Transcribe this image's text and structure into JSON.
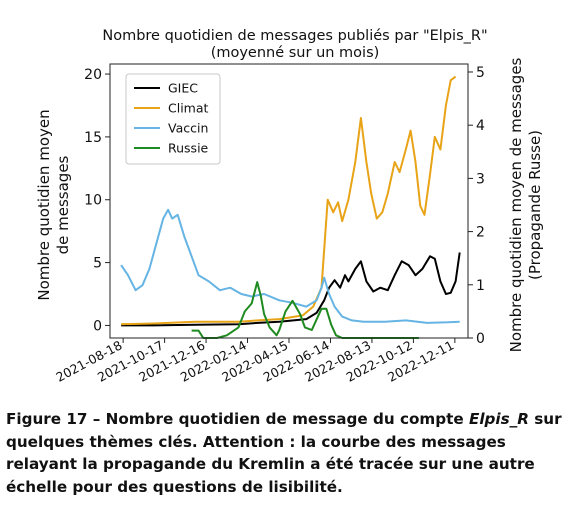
{
  "chart_data": {
    "type": "line",
    "title": "Nombre quotidien de messages publiés par \"Elpis_R\"",
    "subtitle": "(moyenné sur un mois)",
    "ylabel_left": [
      "Nombre quotidien moyen",
      "de messages"
    ],
    "ylabel_right": [
      "Nombre quotidien moyen de messages",
      "(Propagande Russe)"
    ],
    "xlim": [
      "2021-07-30",
      "2022-12-30"
    ],
    "ylim_left": [
      -1,
      20.8
    ],
    "ylim_right": [
      0,
      5.15
    ],
    "yticks_left": [
      0,
      5,
      10,
      15,
      20
    ],
    "yticks_right": [
      0,
      1,
      2,
      3,
      4,
      5
    ],
    "x_ticks": [
      "2021-08-18",
      "2021-10-17",
      "2021-12-16",
      "2022-02-14",
      "2022-04-15",
      "2022-06-14",
      "2022-08-13",
      "2022-10-12",
      "2022-12-11"
    ],
    "legend_placement": "upper-left",
    "series": [
      {
        "name": "GIEC",
        "color": "#000000",
        "axis": "left",
        "points": [
          [
            "2021-08-15",
            0.0
          ],
          [
            "2021-10-01",
            0.0
          ],
          [
            "2021-12-01",
            0.05
          ],
          [
            "2022-02-01",
            0.1
          ],
          [
            "2022-03-01",
            0.2
          ],
          [
            "2022-04-01",
            0.3
          ],
          [
            "2022-05-10",
            0.5
          ],
          [
            "2022-05-25",
            1.0
          ],
          [
            "2022-06-05",
            2.0
          ],
          [
            "2022-06-12",
            3.0
          ],
          [
            "2022-06-20",
            3.6
          ],
          [
            "2022-06-28",
            3.0
          ],
          [
            "2022-07-05",
            4.0
          ],
          [
            "2022-07-10",
            3.5
          ],
          [
            "2022-07-20",
            4.5
          ],
          [
            "2022-07-28",
            5.1
          ],
          [
            "2022-08-05",
            3.5
          ],
          [
            "2022-08-15",
            2.7
          ],
          [
            "2022-08-25",
            3.0
          ],
          [
            "2022-09-05",
            2.8
          ],
          [
            "2022-09-15",
            4.0
          ],
          [
            "2022-09-25",
            5.1
          ],
          [
            "2022-10-05",
            4.8
          ],
          [
            "2022-10-15",
            4.0
          ],
          [
            "2022-10-25",
            4.5
          ],
          [
            "2022-11-05",
            5.5
          ],
          [
            "2022-11-12",
            5.3
          ],
          [
            "2022-11-20",
            3.5
          ],
          [
            "2022-11-28",
            2.5
          ],
          [
            "2022-12-05",
            2.6
          ],
          [
            "2022-12-12",
            3.5
          ],
          [
            "2022-12-18",
            5.8
          ]
        ]
      },
      {
        "name": "Climat",
        "color": "#e8a317",
        "axis": "left",
        "points": [
          [
            "2021-08-15",
            0.1
          ],
          [
            "2021-10-01",
            0.15
          ],
          [
            "2021-12-01",
            0.3
          ],
          [
            "2022-02-01",
            0.3
          ],
          [
            "2022-03-01",
            0.4
          ],
          [
            "2022-04-01",
            0.5
          ],
          [
            "2022-05-05",
            0.8
          ],
          [
            "2022-05-20",
            1.5
          ],
          [
            "2022-06-01",
            3.0
          ],
          [
            "2022-06-10",
            10.0
          ],
          [
            "2022-06-18",
            9.0
          ],
          [
            "2022-06-25",
            9.8
          ],
          [
            "2022-07-01",
            8.3
          ],
          [
            "2022-07-10",
            10.0
          ],
          [
            "2022-07-20",
            13.0
          ],
          [
            "2022-07-28",
            16.5
          ],
          [
            "2022-08-05",
            13.0
          ],
          [
            "2022-08-12",
            10.5
          ],
          [
            "2022-08-20",
            8.5
          ],
          [
            "2022-08-28",
            9.0
          ],
          [
            "2022-09-05",
            10.5
          ],
          [
            "2022-09-15",
            13.0
          ],
          [
            "2022-09-22",
            12.2
          ],
          [
            "2022-10-01",
            14.0
          ],
          [
            "2022-10-08",
            15.5
          ],
          [
            "2022-10-15",
            13.0
          ],
          [
            "2022-10-22",
            9.5
          ],
          [
            "2022-10-28",
            8.8
          ],
          [
            "2022-11-05",
            12.0
          ],
          [
            "2022-11-12",
            15.0
          ],
          [
            "2022-11-20",
            14.0
          ],
          [
            "2022-11-28",
            17.5
          ],
          [
            "2022-12-05",
            19.5
          ],
          [
            "2022-12-12",
            19.8
          ]
        ]
      },
      {
        "name": "Vaccin",
        "color": "#65b4e3",
        "axis": "left",
        "points": [
          [
            "2021-08-15",
            4.8
          ],
          [
            "2021-08-25",
            4.0
          ],
          [
            "2021-09-05",
            2.8
          ],
          [
            "2021-09-15",
            3.2
          ],
          [
            "2021-09-25",
            4.5
          ],
          [
            "2021-10-05",
            6.5
          ],
          [
            "2021-10-15",
            8.5
          ],
          [
            "2021-10-22",
            9.2
          ],
          [
            "2021-10-28",
            8.5
          ],
          [
            "2021-11-05",
            8.8
          ],
          [
            "2021-11-15",
            7.0
          ],
          [
            "2021-11-25",
            5.5
          ],
          [
            "2021-12-05",
            4.0
          ],
          [
            "2021-12-20",
            3.5
          ],
          [
            "2022-01-05",
            2.8
          ],
          [
            "2022-01-20",
            3.0
          ],
          [
            "2022-02-05",
            2.5
          ],
          [
            "2022-02-20",
            2.3
          ],
          [
            "2022-03-10",
            2.5
          ],
          [
            "2022-04-01",
            2.0
          ],
          [
            "2022-04-20",
            1.8
          ],
          [
            "2022-05-10",
            1.5
          ],
          [
            "2022-05-25",
            2.0
          ],
          [
            "2022-06-01",
            3.0
          ],
          [
            "2022-06-05",
            3.8
          ],
          [
            "2022-06-12",
            2.5
          ],
          [
            "2022-06-20",
            1.5
          ],
          [
            "2022-07-01",
            0.7
          ],
          [
            "2022-07-15",
            0.4
          ],
          [
            "2022-08-01",
            0.3
          ],
          [
            "2022-09-01",
            0.3
          ],
          [
            "2022-10-01",
            0.4
          ],
          [
            "2022-11-01",
            0.2
          ],
          [
            "2022-12-01",
            0.25
          ],
          [
            "2022-12-18",
            0.3
          ]
        ]
      },
      {
        "name": "Russie",
        "color": "#1f8a1f",
        "axis": "right",
        "points": [
          [
            "2021-11-25",
            0.14
          ],
          [
            "2021-12-05",
            0.14
          ],
          [
            "2021-12-12",
            0.0
          ],
          [
            "2022-01-01",
            0.0
          ],
          [
            "2022-01-15",
            0.05
          ],
          [
            "2022-02-01",
            0.2
          ],
          [
            "2022-02-10",
            0.5
          ],
          [
            "2022-02-20",
            0.65
          ],
          [
            "2022-02-28",
            1.05
          ],
          [
            "2022-03-05",
            0.8
          ],
          [
            "2022-03-10",
            0.45
          ],
          [
            "2022-03-18",
            0.2
          ],
          [
            "2022-03-28",
            0.05
          ],
          [
            "2022-04-01",
            0.15
          ],
          [
            "2022-04-10",
            0.5
          ],
          [
            "2022-04-20",
            0.7
          ],
          [
            "2022-05-01",
            0.45
          ],
          [
            "2022-05-08",
            0.2
          ],
          [
            "2022-05-18",
            0.15
          ],
          [
            "2022-05-25",
            0.35
          ],
          [
            "2022-06-01",
            0.55
          ],
          [
            "2022-06-08",
            0.55
          ],
          [
            "2022-06-15",
            0.25
          ],
          [
            "2022-06-22",
            0.05
          ],
          [
            "2022-07-01",
            0.0
          ],
          [
            "2022-10-20",
            0.0
          ]
        ]
      }
    ]
  },
  "caption": {
    "prefix": "Figure 17 – Nombre quotidien de message du compte ",
    "account": "Elpis_R",
    "suffix": " sur quelques thèmes clés. Attention : la courbe des messages relayant la propagande du Kremlin a été tracée sur une autre échelle pour des questions de lisibilité."
  }
}
